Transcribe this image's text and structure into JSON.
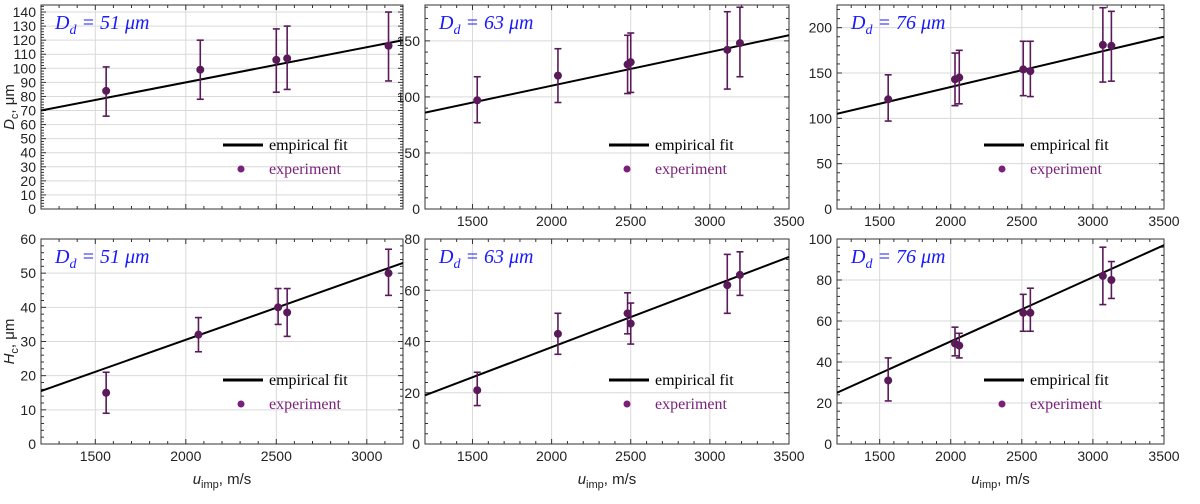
{
  "colors": {
    "fit": "#000000",
    "marker": "#5a1a5a",
    "legend_marker": "#7a1f7a",
    "legend_experiment_text": "#7a1f7a",
    "title": "#1a1aff",
    "grid": "#d9d9d9"
  },
  "chart_data": [
    {
      "type": "scatter",
      "row": 0,
      "col": 0,
      "title_main": "D",
      "title_sub": "d",
      "title_rest": " = 51 μm",
      "ylabel_main": "D",
      "ylabel_sub": "c",
      "ylabel_unit": ", μm",
      "xlabel_main": "",
      "xlabel_sub": "",
      "xlabel_unit": "",
      "xlim": [
        1200,
        3200
      ],
      "ylim": [
        0,
        145
      ],
      "xticks": [],
      "yticks": [
        0,
        10,
        20,
        30,
        40,
        50,
        60,
        70,
        80,
        90,
        100,
        110,
        120,
        130,
        140
      ],
      "grid": true,
      "legend": "lower-right",
      "series": [
        {
          "name": "empirical fit",
          "kind": "line",
          "x": [
            1200,
            3200
          ],
          "y": [
            70,
            120
          ]
        },
        {
          "name": "experiment",
          "kind": "points",
          "points": [
            {
              "x": 1560,
              "y": 84,
              "lo": 66,
              "hi": 101
            },
            {
              "x": 2080,
              "y": 99,
              "lo": 78,
              "hi": 120
            },
            {
              "x": 2500,
              "y": 106,
              "lo": 83,
              "hi": 128
            },
            {
              "x": 2560,
              "y": 107,
              "lo": 85,
              "hi": 130
            },
            {
              "x": 3120,
              "y": 116,
              "lo": 91,
              "hi": 140
            }
          ]
        }
      ]
    },
    {
      "type": "scatter",
      "row": 0,
      "col": 1,
      "title_main": "D",
      "title_sub": "d",
      "title_rest": " = 63 μm",
      "ylabel_main": "",
      "ylabel_sub": "",
      "ylabel_unit": "",
      "xlabel_main": "",
      "xlabel_sub": "",
      "xlabel_unit": "",
      "xlim": [
        1200,
        3500
      ],
      "ylim": [
        0,
        182
      ],
      "xticks": [
        1500,
        2000,
        2500,
        3000,
        3500
      ],
      "yticks": [
        0,
        50,
        100,
        150
      ],
      "grid": true,
      "legend": "lower-right",
      "series": [
        {
          "name": "empirical fit",
          "kind": "line",
          "x": [
            1200,
            3500
          ],
          "y": [
            86,
            155
          ]
        },
        {
          "name": "experiment",
          "kind": "points",
          "points": [
            {
              "x": 1530,
              "y": 97,
              "lo": 77,
              "hi": 118
            },
            {
              "x": 2040,
              "y": 119,
              "lo": 95,
              "hi": 143
            },
            {
              "x": 2480,
              "y": 129,
              "lo": 103,
              "hi": 155
            },
            {
              "x": 2500,
              "y": 131,
              "lo": 104,
              "hi": 157
            },
            {
              "x": 3110,
              "y": 142,
              "lo": 107,
              "hi": 176
            },
            {
              "x": 3190,
              "y": 148,
              "lo": 118,
              "hi": 180
            }
          ]
        }
      ]
    },
    {
      "type": "scatter",
      "row": 0,
      "col": 2,
      "title_main": "D",
      "title_sub": "d",
      "title_rest": " = 76 μm",
      "ylabel_main": "",
      "ylabel_sub": "",
      "ylabel_unit": "",
      "xlabel_main": "",
      "xlabel_sub": "",
      "xlabel_unit": "",
      "xlim": [
        1200,
        3500
      ],
      "ylim": [
        0,
        225
      ],
      "xticks": [
        1500,
        2000,
        2500,
        3000,
        3500
      ],
      "yticks": [
        0,
        50,
        100,
        150,
        200
      ],
      "grid": true,
      "legend": "lower-right",
      "series": [
        {
          "name": "empirical fit",
          "kind": "line",
          "x": [
            1200,
            3500
          ],
          "y": [
            105,
            190
          ]
        },
        {
          "name": "experiment",
          "kind": "points",
          "points": [
            {
              "x": 1560,
              "y": 121,
              "lo": 97,
              "hi": 148
            },
            {
              "x": 2030,
              "y": 143,
              "lo": 114,
              "hi": 172
            },
            {
              "x": 2060,
              "y": 145,
              "lo": 116,
              "hi": 175
            },
            {
              "x": 2510,
              "y": 154,
              "lo": 125,
              "hi": 185
            },
            {
              "x": 2560,
              "y": 152,
              "lo": 124,
              "hi": 185
            },
            {
              "x": 3070,
              "y": 181,
              "lo": 140,
              "hi": 222
            },
            {
              "x": 3130,
              "y": 180,
              "lo": 141,
              "hi": 218
            }
          ]
        }
      ]
    },
    {
      "type": "scatter",
      "row": 1,
      "col": 0,
      "title_main": "D",
      "title_sub": "d",
      "title_rest": " = 51 μm",
      "ylabel_main": "H",
      "ylabel_sub": "c",
      "ylabel_unit": ", μm",
      "xlabel_main": "u",
      "xlabel_sub": "imp",
      "xlabel_unit": ", m/s",
      "xlim": [
        1200,
        3200
      ],
      "ylim": [
        0,
        60
      ],
      "xticks": [
        1500,
        2000,
        2500,
        3000
      ],
      "yticks": [
        0,
        10,
        20,
        30,
        40,
        50,
        60
      ],
      "grid": true,
      "legend": "lower-right",
      "series": [
        {
          "name": "empirical fit",
          "kind": "line",
          "x": [
            1200,
            3200
          ],
          "y": [
            15.5,
            53
          ]
        },
        {
          "name": "experiment",
          "kind": "points",
          "points": [
            {
              "x": 1560,
              "y": 15,
              "lo": 9,
              "hi": 21
            },
            {
              "x": 2070,
              "y": 32,
              "lo": 27,
              "hi": 37
            },
            {
              "x": 2510,
              "y": 40,
              "lo": 35,
              "hi": 45.5
            },
            {
              "x": 2560,
              "y": 38.5,
              "lo": 31.5,
              "hi": 45.5
            },
            {
              "x": 3120,
              "y": 50,
              "lo": 43.5,
              "hi": 57
            }
          ]
        }
      ]
    },
    {
      "type": "scatter",
      "row": 1,
      "col": 1,
      "title_main": "D",
      "title_sub": "d",
      "title_rest": " = 63 μm",
      "ylabel_main": "",
      "ylabel_sub": "",
      "ylabel_unit": "",
      "xlabel_main": "u",
      "xlabel_sub": "imp",
      "xlabel_unit": ", m/s",
      "xlim": [
        1200,
        3500
      ],
      "ylim": [
        0,
        80
      ],
      "xticks": [
        1500,
        2000,
        2500,
        3000,
        3500
      ],
      "yticks": [
        0,
        20,
        40,
        60,
        80
      ],
      "grid": true,
      "legend": "lower-right",
      "series": [
        {
          "name": "empirical fit",
          "kind": "line",
          "x": [
            1200,
            3500
          ],
          "y": [
            19,
            73
          ]
        },
        {
          "name": "experiment",
          "kind": "points",
          "points": [
            {
              "x": 1530,
              "y": 21,
              "lo": 15,
              "hi": 28
            },
            {
              "x": 2040,
              "y": 43,
              "lo": 35,
              "hi": 51
            },
            {
              "x": 2480,
              "y": 51,
              "lo": 43,
              "hi": 59
            },
            {
              "x": 2500,
              "y": 47,
              "lo": 39,
              "hi": 55
            },
            {
              "x": 3110,
              "y": 62,
              "lo": 51,
              "hi": 74
            },
            {
              "x": 3190,
              "y": 66,
              "lo": 58,
              "hi": 75
            }
          ]
        }
      ]
    },
    {
      "type": "scatter",
      "row": 1,
      "col": 2,
      "title_main": "D",
      "title_sub": "d",
      "title_rest": " = 76 μm",
      "ylabel_main": "",
      "ylabel_sub": "",
      "ylabel_unit": "",
      "xlabel_main": "u",
      "xlabel_sub": "imp",
      "xlabel_unit": ", m/s",
      "xlim": [
        1200,
        3500
      ],
      "ylim": [
        0,
        100
      ],
      "xticks": [
        1500,
        2000,
        2500,
        3000,
        3500
      ],
      "yticks": [
        0,
        20,
        40,
        60,
        80,
        100
      ],
      "grid": true,
      "legend": "lower-right",
      "series": [
        {
          "name": "empirical fit",
          "kind": "line",
          "x": [
            1200,
            3500
          ],
          "y": [
            25,
            97
          ]
        },
        {
          "name": "experiment",
          "kind": "points",
          "points": [
            {
              "x": 1560,
              "y": 31,
              "lo": 21,
              "hi": 42
            },
            {
              "x": 2030,
              "y": 49,
              "lo": 43,
              "hi": 57
            },
            {
              "x": 2060,
              "y": 48,
              "lo": 42,
              "hi": 54
            },
            {
              "x": 2510,
              "y": 64,
              "lo": 55,
              "hi": 73
            },
            {
              "x": 2560,
              "y": 64,
              "lo": 55,
              "hi": 76
            },
            {
              "x": 3070,
              "y": 82,
              "lo": 68,
              "hi": 96
            },
            {
              "x": 3130,
              "y": 80,
              "lo": 71,
              "hi": 89
            }
          ]
        }
      ]
    }
  ]
}
